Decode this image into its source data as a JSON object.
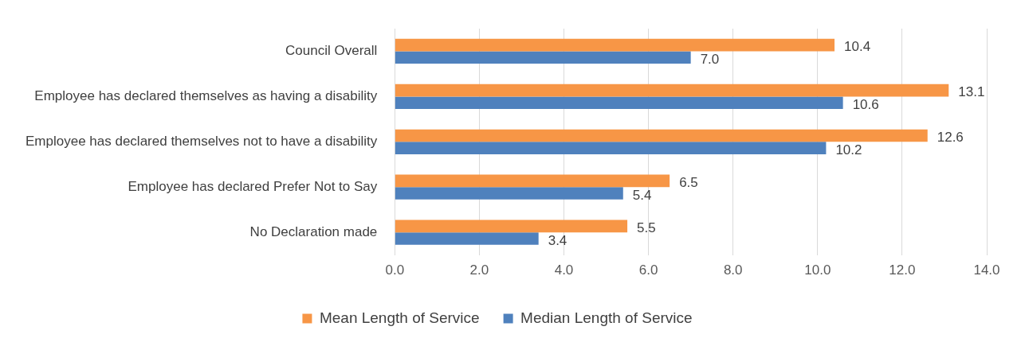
{
  "chart_data": {
    "type": "bar",
    "orientation": "horizontal",
    "categories": [
      "Council Overall",
      "Employee has declared themselves as having a disability",
      "Employee has declared themselves not to have a disability",
      "Employee has declared Prefer Not to Say",
      "No Declaration made"
    ],
    "series": [
      {
        "name": "Mean Length of Service",
        "color": "#f79646",
        "values": [
          10.4,
          13.1,
          12.6,
          6.5,
          5.5
        ],
        "value_labels": [
          "10.4",
          "13.1",
          "12.6",
          "6.5",
          "5.5"
        ]
      },
      {
        "name": "Median Length of Service",
        "color": "#4f81bd",
        "values": [
          7.0,
          10.6,
          10.2,
          5.4,
          3.4
        ],
        "value_labels": [
          "7.0",
          "10.6",
          "10.2",
          "5.4",
          "3.4"
        ]
      }
    ],
    "xlim": [
      0,
      14
    ],
    "xticks": [
      {
        "value": 0,
        "label": "0.0"
      },
      {
        "value": 2,
        "label": "2.0"
      },
      {
        "value": 4,
        "label": "4.0"
      },
      {
        "value": 6,
        "label": "6.0"
      },
      {
        "value": 8,
        "label": "8.0"
      },
      {
        "value": 10,
        "label": "10.0"
      },
      {
        "value": 12,
        "label": "12.0"
      },
      {
        "value": 14,
        "label": "14.0"
      }
    ],
    "grid": "x",
    "legend": "bottom"
  }
}
